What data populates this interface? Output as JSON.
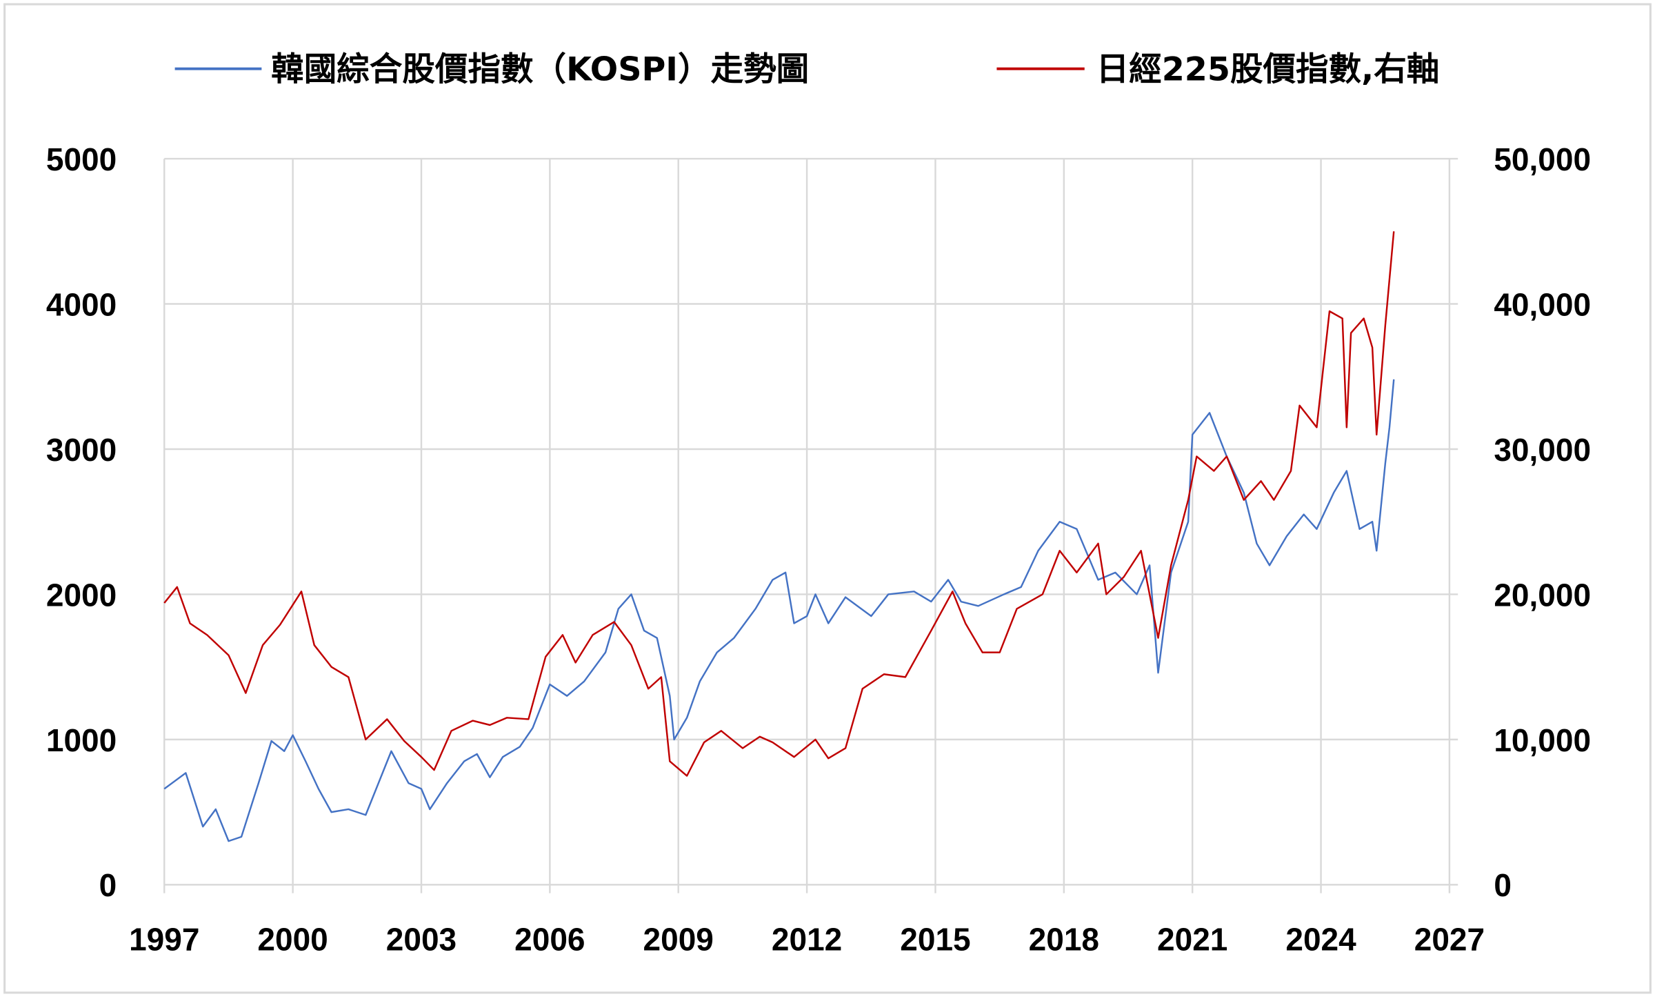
{
  "chart_data": {
    "type": "line",
    "title": "",
    "xlabel": "",
    "ylabel": "",
    "xlim": [
      1997,
      2027
    ],
    "ylim": [
      0,
      5000
    ],
    "y2lim": [
      0,
      50000
    ],
    "grid": true,
    "legend_position": "top",
    "x_ticks": [
      "1997",
      "2000",
      "2003",
      "2006",
      "2009",
      "2012",
      "2015",
      "2018",
      "2021",
      "2024",
      "2027"
    ],
    "y_ticks": [
      "0",
      "1000",
      "2000",
      "3000",
      "4000",
      "5000"
    ],
    "y2_ticks": [
      "0",
      "10,000",
      "20,000",
      "30,000",
      "40,000",
      "50,000"
    ],
    "series": [
      {
        "name": "韓國綜合股價指數（KOSPI）走勢圖",
        "axis": "left",
        "color": "#4472c4",
        "x": [
          1997.0,
          1997.5,
          1997.9,
          1998.2,
          1998.5,
          1998.8,
          1999.2,
          1999.5,
          1999.8,
          2000.0,
          2000.3,
          2000.6,
          2000.9,
          2001.3,
          2001.7,
          2002.0,
          2002.3,
          2002.7,
          2003.0,
          2003.2,
          2003.6,
          2004.0,
          2004.3,
          2004.6,
          2004.9,
          2005.3,
          2005.6,
          2006.0,
          2006.4,
          2006.8,
          2007.3,
          2007.6,
          2007.9,
          2008.2,
          2008.5,
          2008.8,
          2008.9,
          2009.2,
          2009.5,
          2009.9,
          2010.3,
          2010.8,
          2011.2,
          2011.5,
          2011.7,
          2012.0,
          2012.2,
          2012.5,
          2012.9,
          2013.5,
          2013.9,
          2014.5,
          2014.9,
          2015.3,
          2015.6,
          2016.0,
          2016.6,
          2017.0,
          2017.4,
          2017.9,
          2018.3,
          2018.8,
          2019.2,
          2019.7,
          2020.0,
          2020.2,
          2020.5,
          2020.9,
          2021.0,
          2021.4,
          2021.8,
          2022.2,
          2022.5,
          2022.8,
          2023.2,
          2023.6,
          2023.9,
          2024.3,
          2024.6,
          2024.9,
          2025.2,
          2025.3,
          2025.5,
          2025.6,
          2025.7
        ],
        "y": [
          660,
          770,
          400,
          520,
          300,
          330,
          700,
          990,
          920,
          1030,
          850,
          660,
          500,
          520,
          480,
          700,
          920,
          700,
          660,
          520,
          700,
          850,
          900,
          740,
          880,
          950,
          1080,
          1380,
          1300,
          1400,
          1600,
          1900,
          2000,
          1750,
          1700,
          1300,
          1000,
          1150,
          1400,
          1600,
          1700,
          1900,
          2100,
          2150,
          1800,
          1850,
          2000,
          1800,
          1980,
          1850,
          2000,
          2020,
          1950,
          2100,
          1950,
          1920,
          2000,
          2050,
          2300,
          2500,
          2450,
          2100,
          2150,
          2000,
          2200,
          1460,
          2150,
          2500,
          3100,
          3250,
          2950,
          2700,
          2350,
          2200,
          2400,
          2550,
          2450,
          2700,
          2850,
          2450,
          2500,
          2300,
          2900,
          3150,
          3480
        ]
      },
      {
        "name": "日經225股價指數,右軸",
        "axis": "right",
        "color": "#c00000",
        "x": [
          1997.0,
          1997.3,
          1997.6,
          1998.0,
          1998.5,
          1998.9,
          1999.3,
          1999.7,
          2000.2,
          2000.5,
          2000.9,
          2001.3,
          2001.7,
          2002.2,
          2002.6,
          2003.0,
          2003.3,
          2003.7,
          2004.2,
          2004.6,
          2005.0,
          2005.5,
          2005.9,
          2006.3,
          2006.6,
          2007.0,
          2007.5,
          2007.9,
          2008.3,
          2008.6,
          2008.8,
          2009.2,
          2009.6,
          2010.0,
          2010.5,
          2010.9,
          2011.2,
          2011.7,
          2012.2,
          2012.5,
          2012.9,
          2013.3,
          2013.8,
          2014.3,
          2014.9,
          2015.4,
          2015.7,
          2016.1,
          2016.5,
          2016.9,
          2017.5,
          2017.9,
          2018.3,
          2018.8,
          2018.99,
          2019.4,
          2019.8,
          2020.2,
          2020.5,
          2020.9,
          2021.1,
          2021.5,
          2021.8,
          2022.2,
          2022.6,
          2022.9,
          2023.3,
          2023.5,
          2023.9,
          2024.2,
          2024.5,
          2024.6,
          2024.7,
          2025.0,
          2025.2,
          2025.3,
          2025.5,
          2025.7
        ],
        "y": [
          19400,
          20500,
          18000,
          17200,
          15800,
          13200,
          16500,
          17900,
          20200,
          16500,
          15000,
          14300,
          10000,
          11400,
          9900,
          8800,
          7900,
          10600,
          11300,
          11000,
          11500,
          11400,
          15700,
          17200,
          15300,
          17200,
          18100,
          16500,
          13500,
          14300,
          8500,
          7500,
          9800,
          10600,
          9400,
          10200,
          9800,
          8800,
          10000,
          8700,
          9400,
          13500,
          14500,
          14300,
          17500,
          20200,
          18000,
          16000,
          16000,
          19000,
          20000,
          23000,
          21500,
          23500,
          20000,
          21200,
          23000,
          17000,
          22000,
          26500,
          29500,
          28500,
          29500,
          26500,
          27800,
          26500,
          28500,
          33000,
          31500,
          39500,
          39000,
          31500,
          38000,
          39000,
          37000,
          31000,
          38500,
          45000
        ]
      }
    ]
  }
}
